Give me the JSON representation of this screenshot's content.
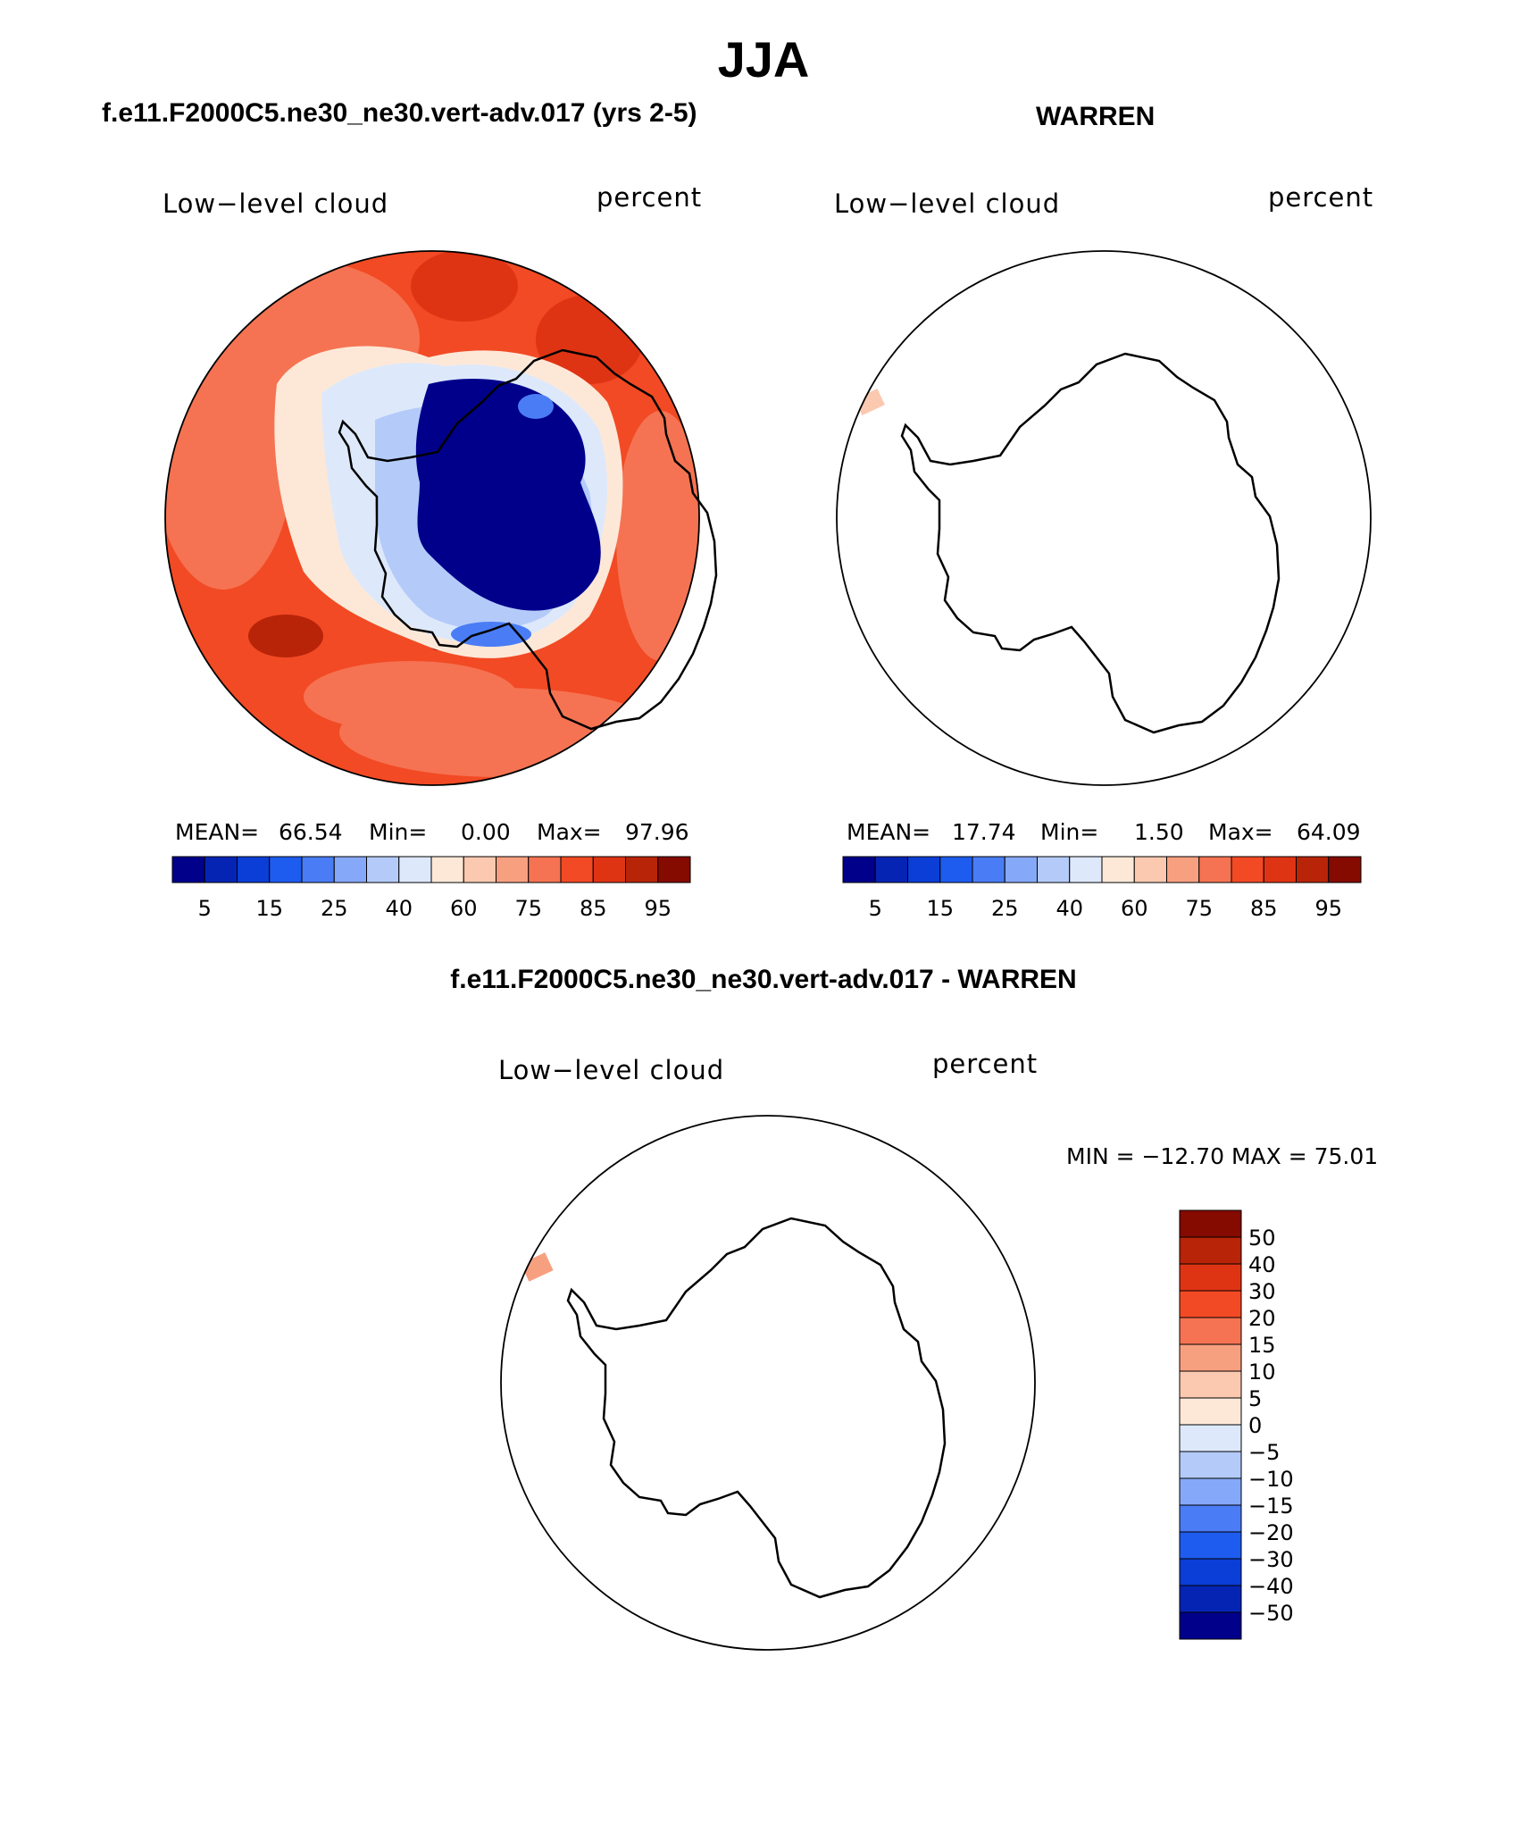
{
  "title": "JJA",
  "panels": {
    "left": {
      "title": "f.e11.F2000C5.ne30_ne30.vert-adv.017 (yrs 2-5)",
      "variable": "Low−level cloud",
      "units": "percent",
      "mean_label": "MEAN=",
      "mean": "66.54",
      "min_label": "Min=",
      "min": "0.00",
      "max_label": "Max=",
      "max": "97.96"
    },
    "right": {
      "title": "WARREN",
      "variable": "Low−level cloud",
      "units": "percent",
      "mean_label": "MEAN=",
      "mean": "17.74",
      "min_label": "Min=",
      "min": "1.50",
      "max_label": "Max=",
      "max": "64.09"
    },
    "diff": {
      "title": "f.e11.F2000C5.ne30_ne30.vert-adv.017 - WARREN",
      "variable": "Low−level cloud",
      "units": "percent",
      "minmax_text": "MIN = −12.70 MAX =   75.01"
    }
  },
  "colorbar_main": {
    "colors": [
      "#00008b",
      "#0624b4",
      "#0a3ed6",
      "#1e5cf0",
      "#4a7df5",
      "#86a8f8",
      "#b4cbfa",
      "#dde9fb",
      "#fde8d8",
      "#fbc9b0",
      "#f7a080",
      "#f57352",
      "#f24a24",
      "#df3414",
      "#b82408",
      "#850a00"
    ],
    "tick_labels": [
      "5",
      "15",
      "25",
      "40",
      "60",
      "75",
      "85",
      "95"
    ]
  },
  "colorbar_diff": {
    "colors": [
      "#850a00",
      "#b82408",
      "#df3414",
      "#f24a24",
      "#f57352",
      "#f7a080",
      "#fbc9b0",
      "#fde8d8",
      "#dde9fb",
      "#b4cbfa",
      "#86a8f8",
      "#4a7df5",
      "#1e5cf0",
      "#0a3ed6",
      "#0624b4",
      "#00008b"
    ],
    "tick_labels": [
      "50",
      "40",
      "30",
      "20",
      "15",
      "10",
      "5",
      "0",
      "−5",
      "−10",
      "−15",
      "−20",
      "−30",
      "−40",
      "−50"
    ]
  }
}
